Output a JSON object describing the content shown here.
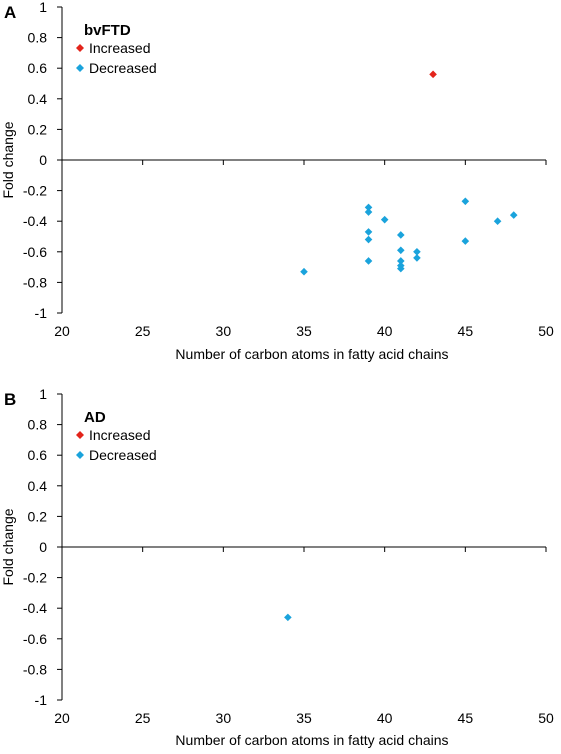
{
  "chart_data": [
    {
      "type": "scatter",
      "panel_label": "A",
      "title": "bvFTD",
      "xlabel": "Number of carbon atoms in fatty acid chains",
      "ylabel": "Fold change",
      "xlim": [
        20,
        50
      ],
      "ylim": [
        -1,
        1
      ],
      "xticks": [
        20,
        25,
        30,
        35,
        40,
        45,
        50
      ],
      "yticks": [
        1,
        0.8,
        0.6,
        0.4,
        0.2,
        0,
        -0.2,
        -0.4,
        -0.6,
        -0.8,
        -1
      ],
      "ytick_labels": [
        "1",
        "0.8",
        "0.6",
        "0.4",
        "0.2",
        "0",
        "-0.2",
        "-0.4",
        "-0.6",
        "-0.8",
        "-1"
      ],
      "legend_position": "top-left",
      "series": [
        {
          "name": "Increased",
          "color": "#e3241b",
          "marker": "diamond",
          "points": [
            [
              43,
              0.56
            ]
          ]
        },
        {
          "name": "Decreased",
          "color": "#1aa3dc",
          "marker": "diamond",
          "points": [
            [
              35,
              -0.73
            ],
            [
              39,
              -0.31
            ],
            [
              39,
              -0.34
            ],
            [
              39,
              -0.47
            ],
            [
              39,
              -0.52
            ],
            [
              39,
              -0.66
            ],
            [
              40,
              -0.39
            ],
            [
              41,
              -0.49
            ],
            [
              41,
              -0.59
            ],
            [
              41,
              -0.66
            ],
            [
              41,
              -0.69
            ],
            [
              41,
              -0.71
            ],
            [
              42,
              -0.6
            ],
            [
              42,
              -0.64
            ],
            [
              45,
              -0.27
            ],
            [
              45,
              -0.53
            ],
            [
              47,
              -0.4
            ],
            [
              48,
              -0.36
            ]
          ]
        }
      ]
    },
    {
      "type": "scatter",
      "panel_label": "B",
      "title": "AD",
      "xlabel": "Number of carbon atoms in fatty acid chains",
      "ylabel": "Fold change",
      "xlim": [
        20,
        50
      ],
      "ylim": [
        -1,
        1
      ],
      "xticks": [
        20,
        25,
        30,
        35,
        40,
        45,
        50
      ],
      "yticks": [
        1,
        0.8,
        0.6,
        0.4,
        0.2,
        0,
        -0.2,
        -0.4,
        -0.6,
        -0.8,
        -1
      ],
      "ytick_labels": [
        "1",
        "0.8",
        "0.6",
        "0.4",
        "0.2",
        "0",
        "-0.2",
        "-0.4",
        "-0.6",
        "-0.8",
        "-1"
      ],
      "legend_position": "top-left",
      "series": [
        {
          "name": "Increased",
          "color": "#e3241b",
          "marker": "diamond",
          "points": []
        },
        {
          "name": "Decreased",
          "color": "#1aa3dc",
          "marker": "diamond",
          "points": [
            [
              34,
              -0.46
            ]
          ]
        }
      ]
    }
  ]
}
